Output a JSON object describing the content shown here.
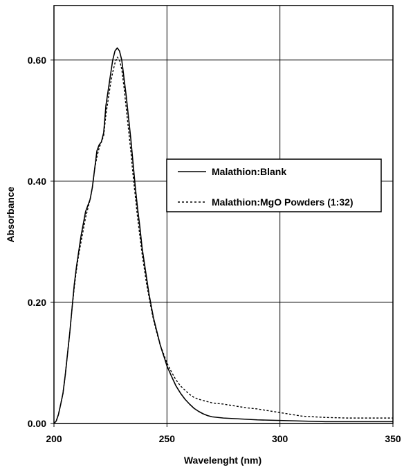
{
  "chart_data": {
    "type": "line",
    "title": "",
    "xlabel": "Wavelenght (nm)",
    "ylabel": "Absorbance",
    "xlim": [
      200,
      350
    ],
    "ylim": [
      0.0,
      0.69
    ],
    "x_ticks": [
      200,
      250,
      300,
      350
    ],
    "y_ticks": [
      0.0,
      0.2,
      0.4,
      0.6
    ],
    "x_tick_labels": [
      "200",
      "250",
      "300",
      "350"
    ],
    "y_tick_labels": [
      "0.00",
      "0.20",
      "0.40",
      "0.60"
    ],
    "grid": true,
    "legend_position": "center-right",
    "series": [
      {
        "name": "Malathion:Blank",
        "style": "solid",
        "color": "#000000",
        "points": [
          [
            200,
            0.0
          ],
          [
            201,
            0.004
          ],
          [
            202,
            0.015
          ],
          [
            203,
            0.032
          ],
          [
            204,
            0.05
          ],
          [
            205,
            0.08
          ],
          [
            206,
            0.115
          ],
          [
            207,
            0.15
          ],
          [
            208,
            0.19
          ],
          [
            209,
            0.23
          ],
          [
            210,
            0.26
          ],
          [
            211,
            0.285
          ],
          [
            212,
            0.31
          ],
          [
            213,
            0.33
          ],
          [
            214,
            0.35
          ],
          [
            215,
            0.36
          ],
          [
            216,
            0.37
          ],
          [
            217,
            0.39
          ],
          [
            218,
            0.42
          ],
          [
            219,
            0.45
          ],
          [
            220,
            0.46
          ],
          [
            221,
            0.465
          ],
          [
            222,
            0.48
          ],
          [
            223,
            0.525
          ],
          [
            224,
            0.55
          ],
          [
            225,
            0.575
          ],
          [
            226,
            0.6
          ],
          [
            227,
            0.615
          ],
          [
            228,
            0.62
          ],
          [
            229,
            0.615
          ],
          [
            230,
            0.6
          ],
          [
            231,
            0.57
          ],
          [
            232,
            0.54
          ],
          [
            233,
            0.505
          ],
          [
            234,
            0.47
          ],
          [
            235,
            0.43
          ],
          [
            236,
            0.39
          ],
          [
            237,
            0.355
          ],
          [
            238,
            0.325
          ],
          [
            239,
            0.29
          ],
          [
            240,
            0.265
          ],
          [
            241,
            0.24
          ],
          [
            242,
            0.215
          ],
          [
            243,
            0.195
          ],
          [
            244,
            0.175
          ],
          [
            245,
            0.16
          ],
          [
            246,
            0.145
          ],
          [
            247,
            0.13
          ],
          [
            248,
            0.118
          ],
          [
            249,
            0.107
          ],
          [
            250,
            0.095
          ],
          [
            252,
            0.078
          ],
          [
            254,
            0.062
          ],
          [
            256,
            0.05
          ],
          [
            258,
            0.04
          ],
          [
            260,
            0.032
          ],
          [
            262,
            0.025
          ],
          [
            264,
            0.02
          ],
          [
            266,
            0.016
          ],
          [
            268,
            0.013
          ],
          [
            270,
            0.011
          ],
          [
            275,
            0.009
          ],
          [
            280,
            0.008
          ],
          [
            290,
            0.006
          ],
          [
            300,
            0.005
          ],
          [
            310,
            0.004
          ],
          [
            320,
            0.003
          ],
          [
            330,
            0.003
          ],
          [
            340,
            0.003
          ],
          [
            350,
            0.003
          ]
        ]
      },
      {
        "name": "Malathion:MgO Powders (1:32)",
        "style": "dashed",
        "color": "#000000",
        "points": [
          [
            200,
            0.0
          ],
          [
            201,
            0.004
          ],
          [
            202,
            0.015
          ],
          [
            203,
            0.032
          ],
          [
            204,
            0.05
          ],
          [
            205,
            0.08
          ],
          [
            206,
            0.115
          ],
          [
            207,
            0.15
          ],
          [
            208,
            0.19
          ],
          [
            209,
            0.225
          ],
          [
            210,
            0.255
          ],
          [
            211,
            0.28
          ],
          [
            212,
            0.3
          ],
          [
            213,
            0.32
          ],
          [
            214,
            0.34
          ],
          [
            215,
            0.355
          ],
          [
            216,
            0.37
          ],
          [
            217,
            0.39
          ],
          [
            218,
            0.42
          ],
          [
            219,
            0.44
          ],
          [
            220,
            0.455
          ],
          [
            221,
            0.465
          ],
          [
            222,
            0.475
          ],
          [
            223,
            0.51
          ],
          [
            224,
            0.535
          ],
          [
            225,
            0.56
          ],
          [
            226,
            0.58
          ],
          [
            227,
            0.595
          ],
          [
            228,
            0.605
          ],
          [
            229,
            0.6
          ],
          [
            230,
            0.585
          ],
          [
            231,
            0.555
          ],
          [
            232,
            0.52
          ],
          [
            233,
            0.485
          ],
          [
            234,
            0.45
          ],
          [
            235,
            0.41
          ],
          [
            236,
            0.375
          ],
          [
            237,
            0.34
          ],
          [
            238,
            0.31
          ],
          [
            239,
            0.28
          ],
          [
            240,
            0.255
          ],
          [
            241,
            0.23
          ],
          [
            242,
            0.21
          ],
          [
            243,
            0.19
          ],
          [
            244,
            0.172
          ],
          [
            245,
            0.157
          ],
          [
            246,
            0.143
          ],
          [
            247,
            0.13
          ],
          [
            248,
            0.12
          ],
          [
            249,
            0.11
          ],
          [
            250,
            0.1
          ],
          [
            252,
            0.085
          ],
          [
            254,
            0.072
          ],
          [
            256,
            0.062
          ],
          [
            258,
            0.055
          ],
          [
            260,
            0.048
          ],
          [
            262,
            0.043
          ],
          [
            264,
            0.04
          ],
          [
            266,
            0.038
          ],
          [
            268,
            0.036
          ],
          [
            270,
            0.034
          ],
          [
            275,
            0.032
          ],
          [
            280,
            0.029
          ],
          [
            285,
            0.026
          ],
          [
            290,
            0.024
          ],
          [
            295,
            0.021
          ],
          [
            300,
            0.018
          ],
          [
            305,
            0.015
          ],
          [
            310,
            0.012
          ],
          [
            315,
            0.011
          ],
          [
            320,
            0.01
          ],
          [
            330,
            0.009
          ],
          [
            340,
            0.009
          ],
          [
            350,
            0.009
          ]
        ]
      }
    ]
  }
}
